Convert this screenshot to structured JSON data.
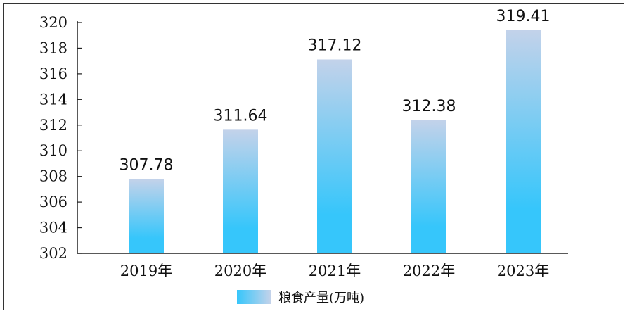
{
  "chart_data": {
    "type": "bar",
    "categories": [
      "2019年",
      "2020年",
      "2021年",
      "2022年",
      "2023年"
    ],
    "series": [
      {
        "name": "粮食产量(万吨)",
        "values": [
          307.78,
          311.64,
          317.12,
          312.38,
          319.41
        ],
        "data_labels": [
          "307.78",
          "311.64",
          "317.12",
          "312.38",
          "319.41"
        ]
      }
    ],
    "y_ticks": [
      "302",
      "304",
      "306",
      "308",
      "310",
      "312",
      "314",
      "316",
      "318",
      "320"
    ],
    "ylim": [
      302,
      320
    ],
    "legend_position": "bottom",
    "grid": false,
    "colors": {
      "bar_top": "#c3d2ea",
      "bar_bottom": "#36c6fb",
      "axis": "#222222"
    }
  }
}
